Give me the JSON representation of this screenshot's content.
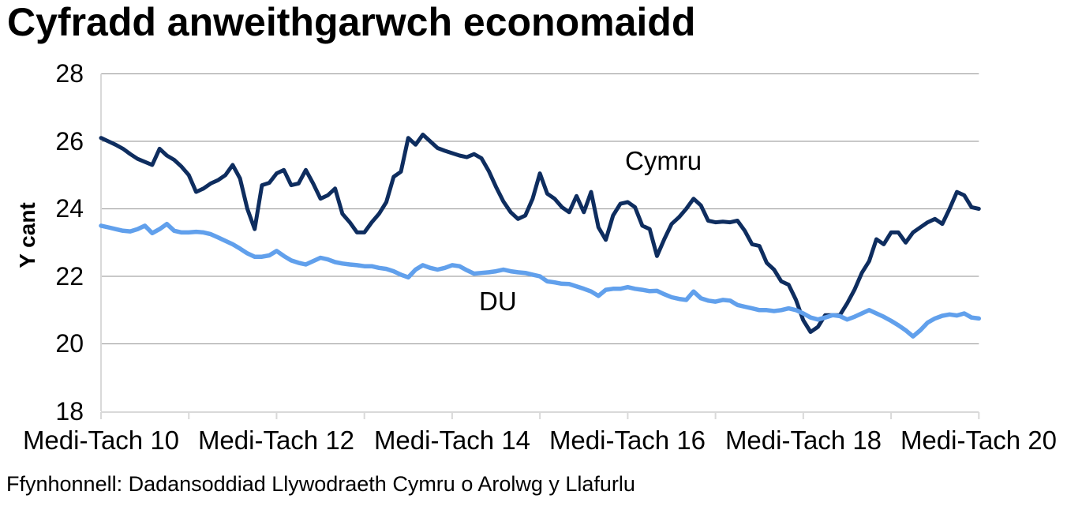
{
  "page": {
    "title": "Cyfradd anweithgarwch economaidd",
    "source": "Ffynhonnell: Dadansoddiad Llywodraeth Cymru o Arolwg y Llafurlu"
  },
  "chart_data": {
    "type": "line",
    "title": "Cyfradd anweithgarwch economaidd",
    "xlabel": "",
    "ylabel": "Y cant",
    "ylim": [
      18,
      28
    ],
    "y_ticks": [
      28,
      26,
      24,
      22,
      20,
      18
    ],
    "grid": "horizontal-only",
    "legend_position": "inline-labels",
    "x_tick_labels": [
      "Medi-Tach 10",
      "Medi-Tach 12",
      "Medi-Tach 14",
      "Medi-Tach 16",
      "Medi-Tach 18",
      "Medi-Tach 20"
    ],
    "x_label_indices": [
      0,
      24,
      48,
      72,
      96,
      120
    ],
    "x_minor_tick_step": 12,
    "points_per_series": 121,
    "x_unit": "rolling-3-month-periods-monthly",
    "colors": {
      "grid": "#A6A6A6",
      "axis": "#D9D9D9",
      "cymru": "#0E2D5F",
      "du": "#61A0EC"
    },
    "series": [
      {
        "name": "Cymru",
        "color": "#0E2D5F",
        "values": [
          26.1,
          26.0,
          25.9,
          25.78,
          25.62,
          25.48,
          25.39,
          25.3,
          25.78,
          25.58,
          25.45,
          25.25,
          25.0,
          24.5,
          24.6,
          24.75,
          24.85,
          25.0,
          25.3,
          24.9,
          24.0,
          23.4,
          24.7,
          24.77,
          25.05,
          25.15,
          24.7,
          24.75,
          25.15,
          24.75,
          24.3,
          24.4,
          24.6,
          23.85,
          23.6,
          23.3,
          23.3,
          23.6,
          23.85,
          24.2,
          24.95,
          25.1,
          26.1,
          25.9,
          26.2,
          26.0,
          25.8,
          25.72,
          25.65,
          25.58,
          25.53,
          25.62,
          25.5,
          25.12,
          24.65,
          24.22,
          23.9,
          23.7,
          23.8,
          24.3,
          25.05,
          24.45,
          24.3,
          24.05,
          23.9,
          24.38,
          23.9,
          24.5,
          23.45,
          23.08,
          23.8,
          24.15,
          24.2,
          24.05,
          23.5,
          23.4,
          22.6,
          23.1,
          23.55,
          23.75,
          24.0,
          24.3,
          24.1,
          23.65,
          23.6,
          23.62,
          23.6,
          23.65,
          23.35,
          22.95,
          22.9,
          22.4,
          22.2,
          21.85,
          21.75,
          21.3,
          20.7,
          20.35,
          20.5,
          20.85,
          20.85,
          20.85,
          21.2,
          21.6,
          22.1,
          22.45,
          23.1,
          22.95,
          23.3,
          23.3,
          23.0,
          23.3,
          23.45,
          23.6,
          23.7,
          23.55,
          24.0,
          24.5,
          24.4,
          24.05,
          24.0
        ]
      },
      {
        "name": "DU",
        "color": "#61A0EC",
        "values": [
          23.5,
          23.45,
          23.4,
          23.35,
          23.33,
          23.4,
          23.5,
          23.28,
          23.4,
          23.55,
          23.35,
          23.3,
          23.3,
          23.32,
          23.3,
          23.25,
          23.15,
          23.05,
          22.95,
          22.82,
          22.68,
          22.58,
          22.58,
          22.62,
          22.75,
          22.6,
          22.47,
          22.4,
          22.35,
          22.45,
          22.55,
          22.5,
          22.42,
          22.38,
          22.35,
          22.33,
          22.3,
          22.3,
          22.25,
          22.22,
          22.15,
          22.05,
          21.97,
          22.2,
          22.33,
          22.25,
          22.2,
          22.25,
          22.33,
          22.3,
          22.18,
          22.08,
          22.1,
          22.12,
          22.15,
          22.2,
          22.15,
          22.12,
          22.1,
          22.05,
          22.0,
          21.85,
          21.82,
          21.78,
          21.77,
          21.7,
          21.63,
          21.55,
          21.42,
          21.6,
          21.63,
          21.63,
          21.68,
          21.63,
          21.6,
          21.56,
          21.57,
          21.47,
          21.38,
          21.33,
          21.3,
          21.55,
          21.35,
          21.28,
          21.25,
          21.3,
          21.28,
          21.15,
          21.1,
          21.05,
          21.0,
          21.0,
          20.97,
          21.0,
          21.05,
          21.0,
          20.9,
          20.78,
          20.72,
          20.78,
          20.85,
          20.82,
          20.72,
          20.8,
          20.9,
          21.0,
          20.9,
          20.8,
          20.68,
          20.55,
          20.4,
          20.22,
          20.4,
          20.63,
          20.75,
          20.83,
          20.87,
          20.84,
          20.9,
          20.78,
          20.75
        ]
      }
    ]
  }
}
